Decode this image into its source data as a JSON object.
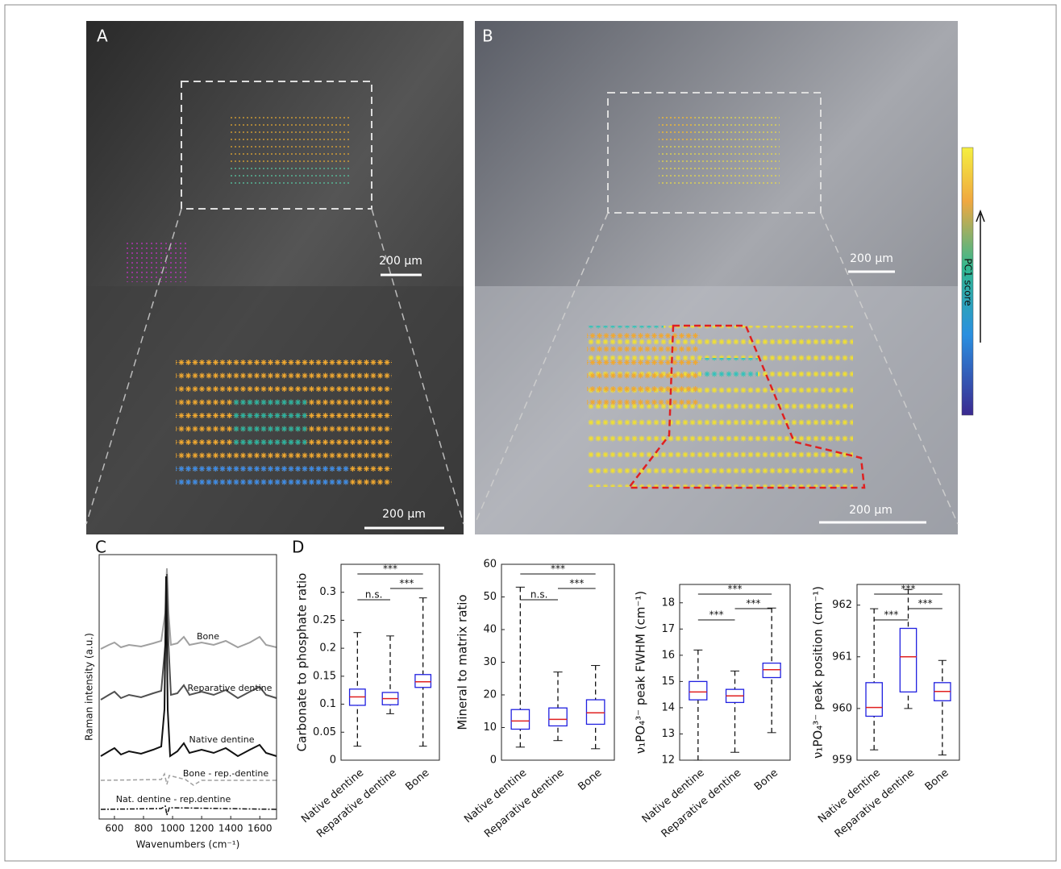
{
  "panel_letters": [
    "A",
    "B",
    "C",
    "D"
  ],
  "panel_a": {
    "scale_bar_overview": "200 µm",
    "scale_bar_zoom": "200 µm"
  },
  "panel_b": {
    "scale_bar_overview": "200 µm",
    "scale_bar_zoom": "200 µm",
    "colorbar_label": "PC1 score"
  },
  "chart_data": [
    {
      "type": "spectra",
      "ylabel": "Raman intensity (a.u.)",
      "xlabel": "Wavenumbers (cm⁻¹)",
      "xlim": [
        495,
        1715
      ],
      "xticks": [
        600,
        800,
        1000,
        1200,
        1400,
        1600
      ],
      "traces": [
        {
          "name": "Bone",
          "color": "#a0a0a0"
        },
        {
          "name": "Reparative dentine",
          "color": "#505050"
        },
        {
          "name": "Native dentine",
          "color": "#111111"
        },
        {
          "name": "Bone - rep.-dentine",
          "color": "#a0a0a0"
        },
        {
          "name": "Nat. dentine - rep.dentine",
          "color": "#111111"
        }
      ]
    },
    {
      "type": "box",
      "ylabel": "Carbonate to phosphate ratio",
      "categories": [
        "Native dentine",
        "Reparative dentine",
        "Bone"
      ],
      "ylim": [
        0,
        0.35
      ],
      "yticks": [
        0,
        0.05,
        0.1,
        0.15,
        0.2,
        0.25,
        0.3
      ],
      "min": [
        0.025,
        0.083,
        0.025
      ],
      "q1": [
        0.098,
        0.099,
        0.13
      ],
      "median": [
        0.113,
        0.11,
        0.14
      ],
      "q3": [
        0.127,
        0.121,
        0.153
      ],
      "max": [
        0.228,
        0.222,
        0.29
      ],
      "significance": [
        "n.s.",
        "***",
        "***"
      ]
    },
    {
      "type": "box",
      "ylabel": "Mineral to matrix ratio",
      "categories": [
        "Native dentine",
        "Reparative dentine",
        "Bone"
      ],
      "ylim": [
        0,
        60
      ],
      "yticks": [
        0,
        10,
        20,
        30,
        40,
        50,
        60
      ],
      "min": [
        4,
        6,
        3.5
      ],
      "q1": [
        9.5,
        10.5,
        11
      ],
      "median": [
        12,
        12.5,
        14.5
      ],
      "q3": [
        15.5,
        16,
        18.5
      ],
      "max": [
        53,
        27,
        29
      ],
      "significance": [
        "n.s.",
        "***",
        "***"
      ]
    },
    {
      "type": "box",
      "ylabel": "ν₁PO₄³⁻ peak FWHM (cm⁻¹)",
      "categories": [
        "Native dentine",
        "Reparative dentine",
        "Bone"
      ],
      "ylim": [
        12,
        18.7
      ],
      "yticks": [
        12,
        13,
        14,
        15,
        16,
        17,
        18
      ],
      "min": [
        12,
        12.3,
        13.05
      ],
      "q1": [
        14.3,
        14.2,
        15.15
      ],
      "median": [
        14.6,
        14.45,
        15.45
      ],
      "q3": [
        15,
        14.7,
        15.7
      ],
      "max": [
        16.2,
        15.4,
        17.8
      ],
      "significance": [
        "***",
        "***",
        "***"
      ]
    },
    {
      "type": "box",
      "ylabel": "ν₁PO₄³⁻ peak position (cm⁻¹)",
      "categories": [
        "Native dentine",
        "Reparative dentine",
        "Bone"
      ],
      "ylim": [
        959,
        962.4
      ],
      "yticks": [
        959,
        960,
        961,
        962
      ],
      "min": [
        959.2,
        960,
        959.1
      ],
      "q1": [
        959.85,
        960.32,
        960.15
      ],
      "median": [
        960.02,
        961,
        960.33
      ],
      "q3": [
        960.5,
        961.55,
        960.5
      ],
      "max": [
        961.93,
        962.3,
        960.93
      ],
      "significance": [
        "***",
        "***",
        "***"
      ]
    }
  ]
}
